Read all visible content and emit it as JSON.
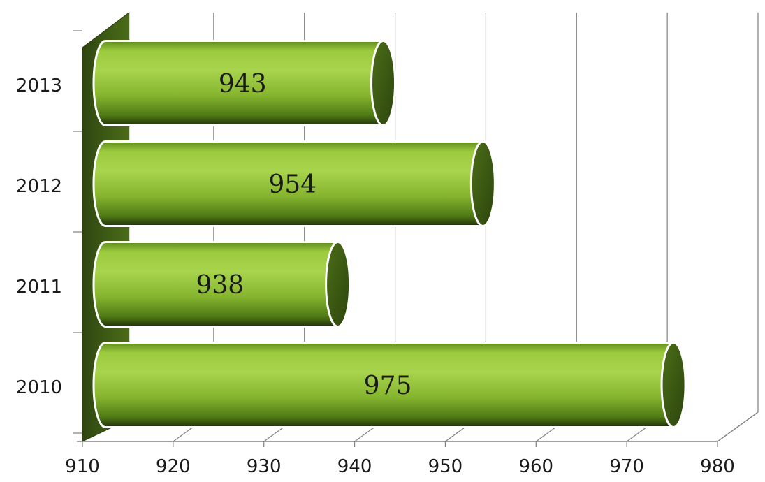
{
  "chart_data": {
    "type": "bar",
    "orientation": "horizontal",
    "style": "3d-cylinder",
    "title": "",
    "xlabel": "",
    "ylabel": "",
    "categories": [
      "2010",
      "2011",
      "2012",
      "2013"
    ],
    "values": [
      975,
      938,
      954,
      943
    ],
    "data_labels": [
      "975",
      "938",
      "954",
      "943"
    ],
    "xlim": [
      910,
      980
    ],
    "xticks": [
      910,
      920,
      930,
      940,
      950,
      960,
      970,
      980
    ],
    "xtick_labels": [
      "910",
      "920",
      "930",
      "940",
      "950",
      "960",
      "970",
      "980"
    ],
    "grid": "vertical",
    "legend": "none",
    "colors": {
      "bar_light": "#a8d24a",
      "bar_mid": "#7cad2a",
      "bar_dark": "#2f4a0e",
      "bar_cap": "#3d5c14",
      "wall": "#3e5a12",
      "grid": "#808080",
      "axis": "#808080"
    }
  }
}
